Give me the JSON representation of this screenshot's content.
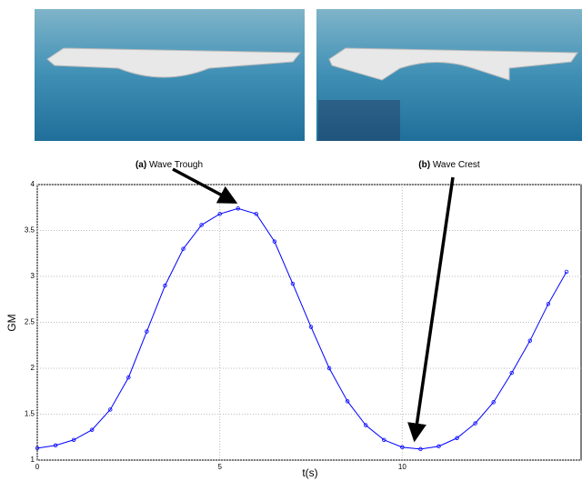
{
  "figure": {
    "panels": [
      {
        "tag": "(a)",
        "caption": "Wave Trough"
      },
      {
        "tag": "(b)",
        "caption": "Wave Crest"
      }
    ]
  },
  "chart_data": {
    "type": "line",
    "xlabel": "t(s)",
    "ylabel": "GM",
    "x": [
      0,
      0.5,
      1,
      1.5,
      2,
      2.5,
      3,
      3.5,
      4,
      4.5,
      5,
      5.5,
      6,
      6.5,
      7,
      7.5,
      8,
      8.5,
      9,
      9.5,
      10,
      10.5,
      11,
      11.5,
      12,
      12.5,
      13,
      13.5,
      14,
      14.5
    ],
    "series": [
      {
        "color": "#0000ff",
        "values": [
          1.13,
          1.16,
          1.22,
          1.33,
          1.55,
          1.9,
          2.4,
          2.9,
          3.3,
          3.56,
          3.68,
          3.74,
          3.68,
          3.38,
          2.92,
          2.45,
          2.0,
          1.64,
          1.38,
          1.22,
          1.14,
          1.12,
          1.15,
          1.24,
          1.4,
          1.63,
          1.95,
          2.3,
          2.7,
          3.05
        ]
      }
    ],
    "xlim": [
      0,
      14.9
    ],
    "xticks": [
      0,
      5,
      10
    ],
    "ylim": [
      1,
      4
    ],
    "yticks": [
      1,
      1.5,
      2,
      2.5,
      3,
      3.5,
      4
    ],
    "grid": true
  }
}
